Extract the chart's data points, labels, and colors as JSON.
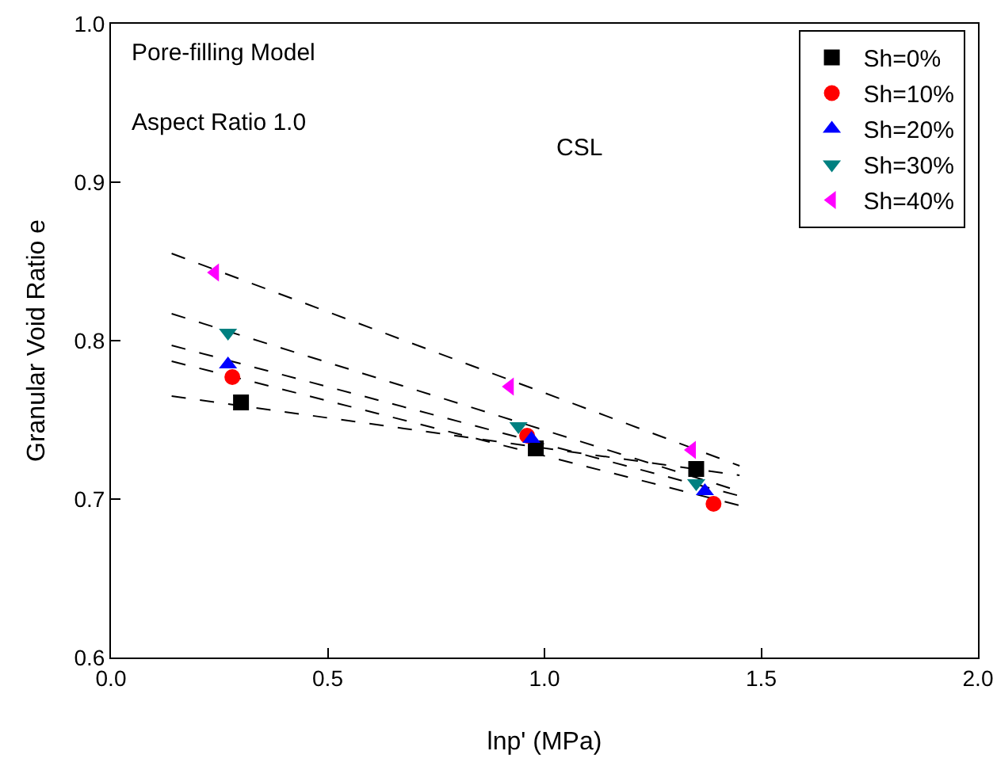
{
  "chart_data": {
    "type": "scatter",
    "xlabel": "lnp' (MPa)",
    "ylabel": "Granular Void Ratio e",
    "annotations": [
      "Pore-filling Model",
      "Aspect Ratio 1.0",
      "CSL"
    ],
    "series": [
      {
        "name": "Sh=0%",
        "color": "#000000",
        "marker": "square",
        "x": [
          0.3,
          0.98,
          1.35
        ],
        "values": [
          0.761,
          0.732,
          0.719
        ]
      },
      {
        "name": "Sh=10%",
        "color": "#ff0000",
        "marker": "circle",
        "x": [
          0.28,
          0.96,
          1.39
        ],
        "values": [
          0.777,
          0.74,
          0.697
        ]
      },
      {
        "name": "Sh=20%",
        "color": "#0000ff",
        "marker": "triangle",
        "x": [
          0.27,
          0.97,
          1.37
        ],
        "values": [
          0.785,
          0.738,
          0.705
        ]
      },
      {
        "name": "Sh=30%",
        "color": "#008080",
        "marker": "triangle-down",
        "x": [
          0.27,
          0.94,
          1.35
        ],
        "values": [
          0.805,
          0.746,
          0.71
        ]
      },
      {
        "name": "Sh=40%",
        "color": "#ff00ff",
        "marker": "triangle-left",
        "x": [
          0.24,
          0.92,
          1.34
        ],
        "values": [
          0.843,
          0.771,
          0.731
        ]
      },
      {
        "type": "line",
        "color": "#000000",
        "line_style": "dashed",
        "marker": "none",
        "x": [
          0.14,
          1.45
        ],
        "values": [
          0.765,
          0.715
        ]
      },
      {
        "type": "line",
        "color": "#000000",
        "line_style": "dashed",
        "marker": "none",
        "x": [
          0.14,
          1.45
        ],
        "values": [
          0.787,
          0.696
        ]
      },
      {
        "type": "line",
        "color": "#000000",
        "line_style": "dashed",
        "marker": "none",
        "x": [
          0.14,
          1.45
        ],
        "values": [
          0.797,
          0.702
        ]
      },
      {
        "type": "line",
        "color": "#000000",
        "line_style": "dashed",
        "marker": "none",
        "x": [
          0.14,
          1.45
        ],
        "values": [
          0.817,
          0.705
        ]
      },
      {
        "type": "line",
        "color": "#000000",
        "line_style": "dashed",
        "marker": "none",
        "x": [
          0.14,
          1.45
        ],
        "values": [
          0.855,
          0.721
        ]
      }
    ],
    "xlim": [
      0,
      2
    ],
    "xticks": [
      {
        "value": 0,
        "label": "0.0"
      },
      0.5,
      {
        "value": 1,
        "label": "1.0"
      },
      1.5,
      {
        "value": 2,
        "label": "2.0"
      }
    ],
    "ylim": [
      0.6,
      1.0
    ],
    "yticks": [
      0.6,
      0.7,
      0.8,
      0.9,
      {
        "value": 1,
        "label": "1.0"
      }
    ],
    "grid": false,
    "legend": "top right"
  }
}
